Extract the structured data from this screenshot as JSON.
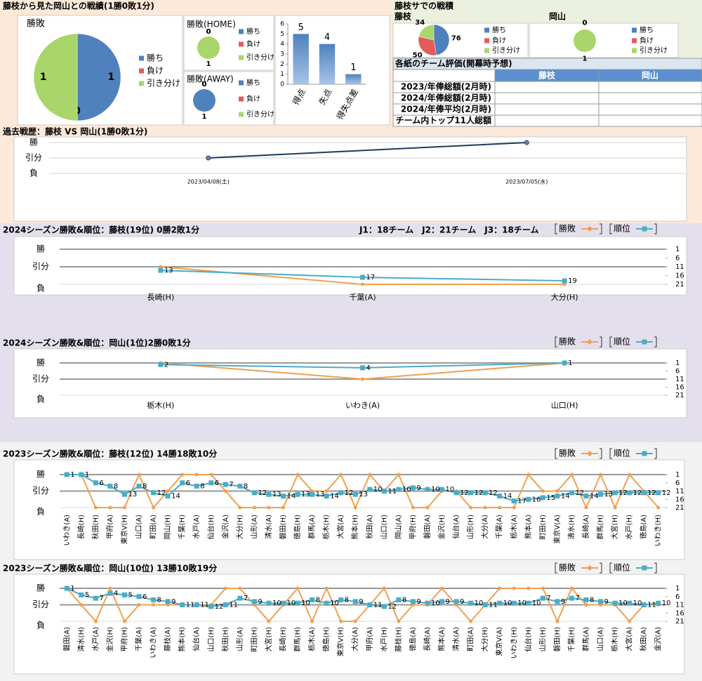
{
  "header": {
    "title": "藤枝から見た岡山との戦績(1勝0敗1分)",
    "right_title": "藤枝サでの戦積"
  },
  "table": {
    "title": "各紙のチーム評価(開幕時予想)",
    "columns": [
      "藤枝",
      "岡山"
    ],
    "rows": [
      "2023/年俸総額(2月時)",
      "2024/年俸総額(2月時)",
      "2024/年俸平均(2月時)",
      "チーム内トップ11人総額"
    ]
  },
  "chart_data": [
    {
      "type": "pie",
      "title": "勝敗",
      "categories": [
        "勝ち",
        "負け",
        "引き分け"
      ],
      "values": [
        1,
        0,
        1
      ],
      "colors": [
        "#4f81bd",
        "#e35b5b",
        "#a9d66a"
      ]
    },
    {
      "type": "pie",
      "title": "勝敗(HOME)",
      "categories": [
        "勝ち",
        "負け",
        "引き分け"
      ],
      "values": [
        0,
        0,
        1
      ],
      "colors": [
        "#4f81bd",
        "#e35b5b",
        "#a9d66a"
      ]
    },
    {
      "type": "pie",
      "title": "勝敗(AWAY)",
      "categories": [
        "勝ち",
        "負け",
        "引き分け"
      ],
      "values": [
        1,
        0,
        0
      ],
      "colors": [
        "#4f81bd",
        "#e35b5b",
        "#a9d66a"
      ]
    },
    {
      "type": "bar",
      "categories": [
        "得点",
        "失点",
        "得失点差"
      ],
      "values": [
        5,
        4,
        1
      ],
      "color": "#4f81bd",
      "ylim": [
        0,
        6
      ],
      "yticks": [
        0,
        1,
        2,
        3,
        4,
        5,
        6
      ]
    },
    {
      "type": "pie",
      "title": "藤枝",
      "categories": [
        "勝ち",
        "負け",
        "引き分け"
      ],
      "values": [
        76,
        50,
        34
      ],
      "colors": [
        "#4f81bd",
        "#e35b5b",
        "#a9d66a"
      ]
    },
    {
      "type": "pie",
      "title": "岡山",
      "categories": [
        "勝ち",
        "負け",
        "引き分け"
      ],
      "values": [
        0,
        0,
        1
      ],
      "colors": [
        "#4f81bd",
        "#e35b5b",
        "#a9d66a"
      ]
    },
    {
      "type": "line",
      "title": "過去戦歴：藤枝 VS 岡山(1勝0敗1分)",
      "categories": [
        "2023/04/08(土)",
        "2023/07/05(水)"
      ],
      "values": [
        0,
        1
      ],
      "color": "#1f3b5a",
      "ylim": [
        -1,
        1
      ],
      "yticks": [
        {
          "value": 1,
          "label": "勝"
        },
        {
          "value": 0,
          "label": "引分"
        },
        {
          "value": -1,
          "label": "負"
        }
      ],
      "grid": true
    },
    {
      "type": "combo",
      "title": "2024シーズン勝敗&順位：藤枝(19位) 0勝2敗1分",
      "annotation": "J1：18チーム　J2：21チーム　J3：18チーム",
      "categories": [
        "長崎(H)",
        "千葉(A)",
        "大分(H)"
      ],
      "series": [
        {
          "name": "勝敗",
          "color": "#f0a050",
          "values": [
            0,
            -1,
            -1
          ]
        },
        {
          "name": "順位",
          "color": "#4bacc6",
          "axis": "y2",
          "values": [
            13,
            17,
            19
          ]
        }
      ],
      "ylim": [
        -1,
        1
      ],
      "yticks": [
        {
          "value": 1,
          "label": "勝"
        },
        {
          "value": 0,
          "label": "引分"
        },
        {
          "value": -1,
          "label": "負"
        }
      ],
      "y2lim": [
        21,
        1
      ],
      "y2ticks": [
        1,
        6,
        11,
        16,
        21
      ],
      "grid": true
    },
    {
      "type": "combo",
      "title": "2024シーズン勝敗&順位：岡山(1位)2勝0敗1分",
      "categories": [
        "栃木(H)",
        "いわき(A)",
        "山口(H)"
      ],
      "series": [
        {
          "name": "勝敗",
          "color": "#f0a050",
          "values": [
            1,
            0,
            1
          ]
        },
        {
          "name": "順位",
          "color": "#4bacc6",
          "axis": "y2",
          "values": [
            2,
            4,
            1
          ]
        }
      ],
      "ylim": [
        -1,
        1
      ],
      "yticks": [
        {
          "value": 1,
          "label": "勝"
        },
        {
          "value": 0,
          "label": "引分"
        },
        {
          "value": -1,
          "label": "負"
        }
      ],
      "y2lim": [
        21,
        1
      ],
      "y2ticks": [
        1,
        6,
        11,
        16,
        21
      ],
      "grid": true
    },
    {
      "type": "combo",
      "title": "2023シーズン勝敗&順位：藤枝(12位) 14勝18敗10分",
      "categories": [
        "いわき(A)",
        "長崎(H)",
        "秋田(H)",
        "甲府(A)",
        "東京V(H)",
        "山口(A)",
        "町田(A)",
        "岡山(H)",
        "千葉(H)",
        "水戸(A)",
        "仙台(H)",
        "金沢(A)",
        "大分(H)",
        "山形(A)",
        "清水(A)",
        "磐田(H)",
        "徳島(H)",
        "群馬(A)",
        "栃木(H)",
        "大宮(A)",
        "熊本(H)",
        "秋田(A)",
        "山口(H)",
        "岡山(A)",
        "甲府(H)",
        "磐田(A)",
        "金沢(H)",
        "仙台(A)",
        "山形(H)",
        "大分(A)",
        "千葉(A)",
        "栃木(A)",
        "熊本(A)",
        "町田(H)",
        "東京V(A)",
        "清水(H)",
        "長崎(A)",
        "群馬(H)",
        "大宮(H)",
        "水戸(H)",
        "徳島(A)",
        "いわき(H)"
      ],
      "series": [
        {
          "name": "勝敗",
          "color": "#f0a050",
          "values": [
            1,
            1,
            -1,
            -1,
            -1,
            1,
            -1,
            0,
            1,
            1,
            1,
            0,
            -1,
            -1,
            -1,
            -1,
            1,
            0,
            0,
            1,
            -1,
            1,
            0,
            1,
            -1,
            -1,
            0,
            0,
            -1,
            -1,
            -1,
            -1,
            1,
            0,
            0,
            1,
            -1,
            1,
            -1,
            1,
            0,
            -1
          ]
        },
        {
          "name": "順位",
          "color": "#4bacc6",
          "axis": "y2",
          "values": [
            1,
            1,
            6,
            8,
            13,
            8,
            12,
            14,
            6,
            8,
            6,
            7,
            8,
            12,
            13,
            14,
            13,
            13,
            14,
            12,
            13,
            10,
            11,
            10,
            9,
            10,
            10,
            12,
            12,
            12,
            14,
            17,
            16,
            15,
            14,
            12,
            14,
            13,
            12,
            12,
            12,
            12
          ]
        }
      ],
      "ylim": [
        -1,
        1
      ],
      "yticks": [
        {
          "value": 1,
          "label": "勝"
        },
        {
          "value": 0,
          "label": "引分"
        },
        {
          "value": -1,
          "label": "負"
        }
      ],
      "y2lim": [
        21,
        1
      ],
      "y2ticks": [
        1,
        6,
        11,
        16,
        21
      ],
      "grid": true
    },
    {
      "type": "combo",
      "title": "2023シーズン勝敗&順位：岡山(10位) 13勝10敗19分",
      "categories": [
        "磐田(A)",
        "清水(H)",
        "水戸(A)",
        "金沢(H)",
        "甲府(H)",
        "千葉(A)",
        "いわき(A)",
        "藤枝(A)",
        "熊本(H)",
        "仙台(A)",
        "山口(H)",
        "秋田(H)",
        "山形(A)",
        "町田(H)",
        "大宮(H)",
        "長崎(H)",
        "群馬(H)",
        "栃木(A)",
        "徳島(H)",
        "東京V(H)",
        "大分(A)",
        "甲府(A)",
        "水戸(H)",
        "藤枝(H)",
        "徳島(A)",
        "長崎(A)",
        "熊本(A)",
        "清水(A)",
        "町田(A)",
        "大分(H)",
        "東京V(A)",
        "いわき(H)",
        "仙台(H)",
        "山形(H)",
        "磐田(H)",
        "千葉(H)",
        "群馬(A)",
        "山口(A)",
        "栃木(H)",
        "大宮(A)",
        "秋田(A)",
        "金沢(A)"
      ],
      "series": [
        {
          "name": "勝敗",
          "color": "#f0a050",
          "values": [
            1,
            0,
            -1,
            1,
            -1,
            0,
            0,
            0,
            0,
            0,
            0,
            1,
            1,
            0,
            -1,
            0,
            1,
            -1,
            1,
            -1,
            -1,
            0,
            1,
            -1,
            0,
            0,
            1,
            0,
            -1,
            0,
            1,
            1,
            1,
            1,
            -1,
            1,
            0,
            0,
            0,
            -1,
            0,
            0
          ]
        },
        {
          "name": "順位",
          "color": "#4bacc6",
          "axis": "y2",
          "values": [
            1,
            5,
            7,
            4,
            5,
            6,
            8,
            9,
            11,
            11,
            12,
            11,
            7,
            9,
            10,
            10,
            10,
            8,
            10,
            8,
            9,
            11,
            12,
            8,
            9,
            10,
            9,
            9,
            10,
            11,
            10,
            10,
            10,
            7,
            9,
            7,
            8,
            9,
            10,
            10,
            11,
            10
          ]
        }
      ],
      "ylim": [
        -1,
        1
      ],
      "yticks": [
        {
          "value": 1,
          "label": "勝"
        },
        {
          "value": 0,
          "label": "引分"
        },
        {
          "value": -1,
          "label": "負"
        }
      ],
      "y2lim": [
        21,
        1
      ],
      "y2ticks": [
        1,
        6,
        11,
        16,
        21
      ],
      "grid": true
    }
  ]
}
